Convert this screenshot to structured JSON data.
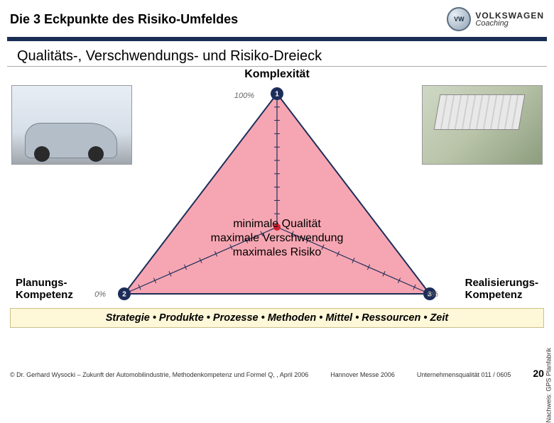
{
  "header": {
    "title": "Die 3 Eckpunkte des Risiko-Umfeldes",
    "brand": {
      "main": "VOLKSWAGEN",
      "sub": "Coaching",
      "logo_glyph": "VW"
    }
  },
  "subtitle": "Qualitäts-, Verschwendungs- und Risiko-Dreieck",
  "triangle": {
    "apex_label": "Komplexität",
    "center_line1": "minimale Qualität",
    "center_line2": "maximale Verschwendung",
    "center_line3": "maximales Risiko",
    "left_label_l1": "Planungs-",
    "left_label_l2": "Kompetenz",
    "right_label_l1": "Realisierungs-",
    "right_label_l2": "Kompetenz",
    "axis1_pct": "100%",
    "axis2_pct": "0%",
    "axis3_pct": "0%",
    "vertex1_num": "1",
    "vertex2_num": "2",
    "vertex3_num": "3",
    "fill_color": "#f6a6b2",
    "edge_color": "#1d2d5a",
    "vertex_color": "#1d2d5a",
    "centroid_color": "#d02030",
    "inner_axis_color": "#1d2d5a",
    "tick_count": 10
  },
  "strategy_row": "Strategie  •  Produkte  •  Prozesse  •  Methoden  •  Mittel  •  Ressourcen  •  Zeit",
  "vertical_credit": "Nachweis: GPS Planfabrik",
  "footer": {
    "left": "© Dr. Gerhard Wysocki – Zukunft der Automobilindustrie, Methodenkompetenz und Formel Q, , April 2006",
    "center": "Hannover Messe 2006",
    "right": "Unternehmensqualität 011 / 0605",
    "page": "20"
  },
  "colors": {
    "hr_bar": "#1a2e55",
    "strategy_bg": "#fef7d8",
    "strategy_border": "#c9c08a"
  }
}
